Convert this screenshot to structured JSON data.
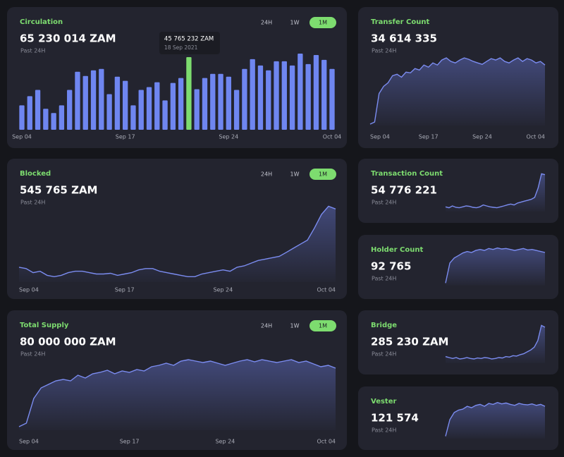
{
  "chart_data": [
    {
      "type": "bar",
      "title": "Circulation",
      "subtitle": "65 230 014 ZAM",
      "note": "Past 24H",
      "buttons": [
        "24H",
        "1W",
        "1M"
      ],
      "active_button": 2,
      "color": "#6f86f0",
      "highlight_color": "#7ddc6f",
      "values": [
        35,
        48,
        57,
        30,
        24,
        35,
        57,
        83,
        77,
        85,
        87,
        51,
        76,
        70,
        35,
        57,
        61,
        68,
        42,
        67,
        74,
        104,
        58,
        74,
        80,
        80,
        76,
        57,
        87,
        101,
        92,
        85,
        98,
        98,
        92,
        109,
        94,
        107,
        100,
        87
      ],
      "ylim": [
        0,
        110
      ],
      "xlim": [
        0,
        39
      ],
      "xticks": [
        {
          "value": 0,
          "label": "Sep 04"
        },
        {
          "value": 13,
          "label": "Sep 17"
        },
        {
          "value": 26,
          "label": "Sep 24"
        },
        {
          "value": 39,
          "label": "Oct 04"
        }
      ],
      "annotation": {
        "index": 21,
        "text": "45 765 232 ZAM",
        "date": "18 Sep 2021"
      }
    },
    {
      "type": "line",
      "title": "Blocked",
      "subtitle": "545 765 ZAM",
      "note": "Past 24H",
      "buttons": [
        "24H",
        "1W",
        "1M"
      ],
      "active_button": 2,
      "color": "#7b8cf0",
      "values": [
        22,
        20,
        14,
        16,
        10,
        8,
        10,
        14,
        16,
        16,
        14,
        12,
        12,
        13,
        10,
        12,
        14,
        18,
        20,
        20,
        16,
        14,
        12,
        10,
        8,
        8,
        12,
        14,
        16,
        18,
        16,
        22,
        24,
        28,
        32,
        34,
        36,
        38,
        44,
        50,
        56,
        62,
        80,
        100,
        112,
        108
      ],
      "ylim": [
        0,
        125
      ],
      "xlim": [
        0,
        45
      ],
      "xticks": [
        {
          "value": 0,
          "label": "Sep 04"
        },
        {
          "value": 15,
          "label": "Sep 17"
        },
        {
          "value": 29,
          "label": "Sep 24"
        },
        {
          "value": 45,
          "label": "Oct 04"
        }
      ]
    },
    {
      "type": "line",
      "title": "Total Supply",
      "subtitle": "80 000 000 ZAM",
      "note": "Past 24H",
      "buttons": [
        "24H",
        "1W",
        "1M"
      ],
      "active_button": 2,
      "color": "#7b8cf0",
      "values": [
        5,
        10,
        45,
        60,
        65,
        70,
        72,
        70,
        78,
        74,
        80,
        82,
        85,
        80,
        84,
        82,
        86,
        84,
        90,
        92,
        95,
        92,
        98,
        100,
        98,
        96,
        98,
        95,
        92,
        95,
        98,
        100,
        97,
        100,
        98,
        96,
        98,
        100,
        96,
        98,
        94,
        90,
        92,
        88
      ],
      "ylim": [
        0,
        110
      ],
      "xlim": [
        0,
        43
      ],
      "xticks": [
        {
          "value": 0,
          "label": "Sep 04"
        },
        {
          "value": 15,
          "label": "Sep 17"
        },
        {
          "value": 28,
          "label": "Sep 24"
        },
        {
          "value": 43,
          "label": "Oct 04"
        }
      ]
    },
    {
      "type": "line",
      "title": "Transfer Count",
      "subtitle": "34 614 335",
      "note": "Past 24H",
      "color": "#7b8cf0",
      "values": [
        2,
        5,
        45,
        55,
        60,
        70,
        72,
        68,
        75,
        74,
        80,
        78,
        85,
        82,
        88,
        85,
        92,
        95,
        90,
        88,
        92,
        95,
        93,
        90,
        88,
        86,
        90,
        94,
        92,
        95,
        90,
        88,
        92,
        95,
        90,
        94,
        92,
        88,
        90,
        85
      ],
      "ylim": [
        0,
        105
      ],
      "xlim": [
        0,
        39
      ],
      "xticks": [
        {
          "value": 0,
          "label": "Sep 04"
        },
        {
          "value": 13,
          "label": "Sep 17"
        },
        {
          "value": 25,
          "label": "Sep 24"
        },
        {
          "value": 39,
          "label": "Oct 04"
        }
      ]
    },
    {
      "type": "line",
      "title": "Transaction Count",
      "subtitle": "54 776 221",
      "note": "Past 24H",
      "color": "#7b8cf0",
      "values": [
        10,
        8,
        12,
        9,
        8,
        10,
        12,
        11,
        9,
        8,
        10,
        14,
        12,
        10,
        9,
        8,
        10,
        12,
        14,
        16,
        14,
        18,
        20,
        22,
        24,
        26,
        30,
        50,
        80,
        78
      ],
      "ylim": [
        0,
        85
      ],
      "xlim": [
        0,
        29
      ]
    },
    {
      "type": "line",
      "title": "Holder Count",
      "subtitle": "92 765",
      "note": "Past 24H",
      "color": "#7b8cf0",
      "values": [
        5,
        45,
        55,
        60,
        65,
        68,
        66,
        70,
        72,
        70,
        74,
        72,
        75,
        73,
        74,
        72,
        70,
        72,
        74,
        71,
        72,
        70,
        68,
        66
      ],
      "ylim": [
        0,
        80
      ],
      "xlim": [
        0,
        23
      ]
    },
    {
      "type": "line",
      "title": "Bridge",
      "subtitle": "285 230 ZAM",
      "note": "Past 24H",
      "color": "#7b8cf0",
      "values": [
        14,
        12,
        10,
        12,
        9,
        10,
        12,
        10,
        9,
        11,
        10,
        12,
        11,
        9,
        10,
        12,
        11,
        14,
        13,
        16,
        15,
        18,
        20,
        24,
        28,
        34,
        48,
        80,
        76
      ],
      "ylim": [
        0,
        85
      ],
      "xlim": [
        0,
        28
      ]
    },
    {
      "type": "line",
      "title": "Vester",
      "subtitle": "121 574",
      "note": "Past 24H",
      "color": "#7b8cf0",
      "values": [
        5,
        40,
        55,
        60,
        62,
        68,
        65,
        70,
        72,
        68,
        74,
        72,
        76,
        73,
        75,
        72,
        70,
        74,
        72,
        71,
        73,
        70,
        72,
        68
      ],
      "ylim": [
        0,
        80
      ],
      "xlim": [
        0,
        23
      ]
    }
  ]
}
